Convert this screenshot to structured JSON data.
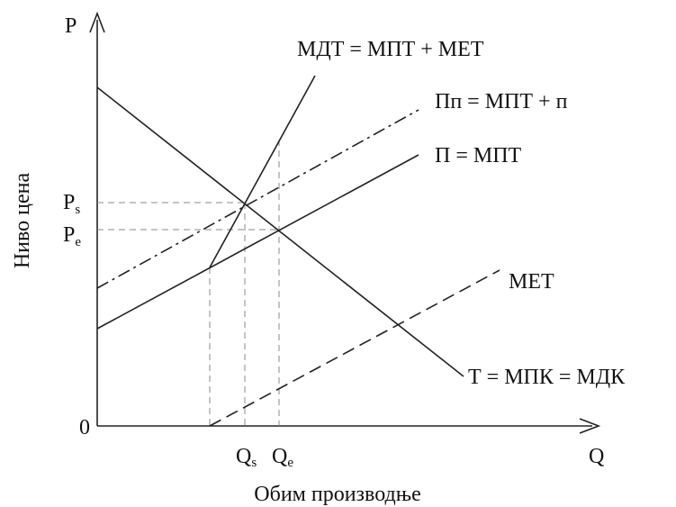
{
  "axes": {
    "y_symbol": "P",
    "x_symbol": "Q",
    "origin": "0",
    "y_title": "Ниво цена",
    "x_title": "Обим производње"
  },
  "price_marks": [
    {
      "symbol": "P",
      "subscript": "s"
    },
    {
      "symbol": "P",
      "subscript": "e"
    }
  ],
  "quantity_marks": [
    {
      "symbol": "Q",
      "subscript": "s"
    },
    {
      "symbol": "Q",
      "subscript": "e"
    }
  ],
  "curves": {
    "mdt": "МДТ = МПТ + МЕТ",
    "pp": "Пп = МПТ + п",
    "p": "П = МПТ",
    "met": "МЕТ",
    "t": "Т = МПК = МДК"
  }
}
